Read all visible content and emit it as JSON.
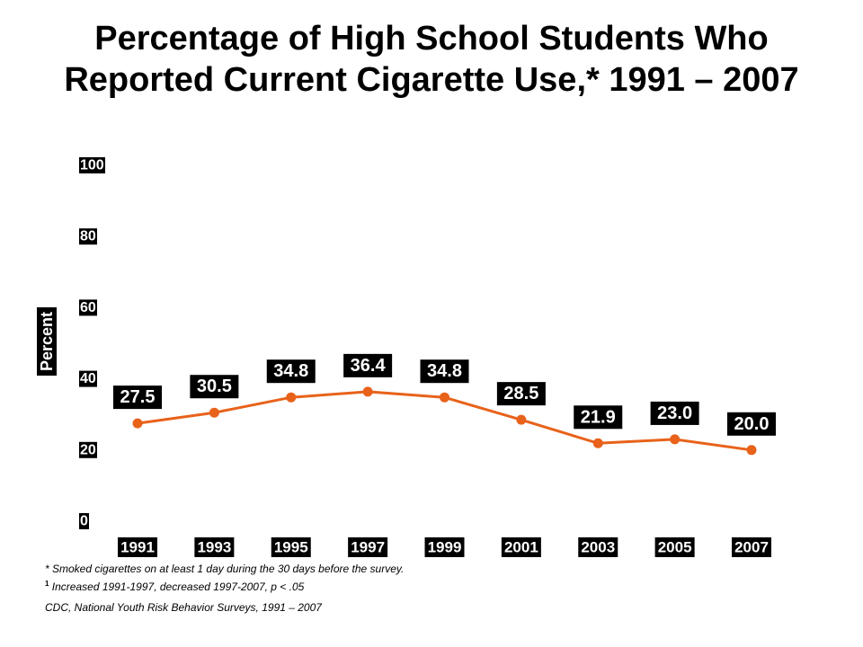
{
  "chart_data": {
    "type": "line",
    "title": "Percentage of High School Students Who Reported Current Cigarette Use,* 1991 – 2007",
    "ylabel": "Percent",
    "xlabel": "",
    "ylim": [
      0,
      100
    ],
    "yticks": [
      "0",
      "20",
      "40",
      "60",
      "80",
      "100"
    ],
    "categories": [
      "1991",
      "1993",
      "1995",
      "1997",
      "1999",
      "2001",
      "2003",
      "2005",
      "2007"
    ],
    "series": [
      {
        "name": "",
        "values": [
          27.5,
          30.5,
          34.8,
          36.4,
          34.8,
          28.5,
          21.9,
          23.0,
          20.0
        ],
        "labels": [
          "27.5",
          "30.5",
          "34.8",
          "36.4",
          "34.8",
          "28.5",
          "21.9",
          "23.0",
          "20.0"
        ],
        "color": "#E8621A"
      }
    ],
    "grid": false,
    "legend": "none"
  },
  "footnotes": {
    "note1": "* Smoked cigarettes on at least 1 day during the 30 days before the survey.",
    "note2_sup": "1",
    "note2": " Increased 1991-1997,  decreased 1997-2007,  p < .05",
    "source": "CDC, National Youth Risk Behavior Surveys, 1991 – 2007"
  },
  "colors": {
    "line": "#E8621A",
    "label_bg": "#000000",
    "label_text": "#FFFFFF"
  }
}
